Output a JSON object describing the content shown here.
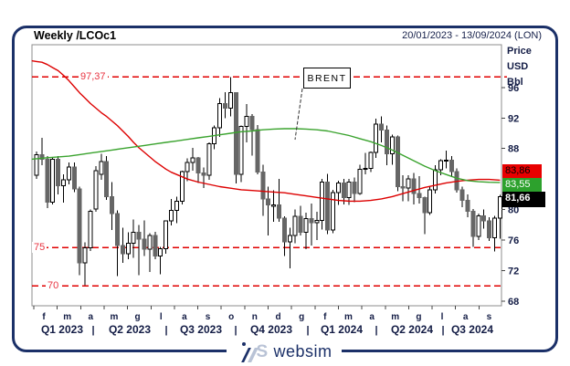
{
  "header": {
    "title": "Weekly /LCOc1",
    "date_range": "20/01/2023 - 13/09/2024 (LON)"
  },
  "y_axis": {
    "unit_lines": [
      "Price",
      "USD",
      "Bbl"
    ],
    "ticks": [
      96,
      92,
      88,
      80,
      76,
      72,
      68
    ]
  },
  "price_tags": {
    "red": {
      "value": "83,86",
      "bg": "#e80000"
    },
    "green": {
      "value": "83,55",
      "bg": "#2da12d"
    },
    "last": {
      "value": "81,66",
      "bg": "#000000"
    }
  },
  "annotation": {
    "label": "BRENT"
  },
  "x_axis": {
    "months": [
      "f",
      "m",
      "a",
      "m",
      "g",
      "l",
      "a",
      "s",
      "o",
      "n",
      "d",
      "g",
      "f",
      "m",
      "a",
      "m",
      "g",
      "l",
      "a",
      "s"
    ],
    "quarters": [
      "Q1 2023",
      "Q2 2023",
      "Q3 2023",
      "Q4 2023",
      "Q1 2024",
      "Q2 2024",
      "Q3 2024"
    ]
  },
  "footer": {
    "logo_mark_letter": "S",
    "logo_text": "websim"
  },
  "chart_data": {
    "type": "candlestick",
    "instrument": "/LCOc1",
    "period": "Weekly",
    "x_unit": "week",
    "x_start": "20/01/2023",
    "x_end": "13/09/2024",
    "ylim": [
      67.4,
      101.6
    ],
    "grid": false,
    "legend": "none",
    "levels": [
      {
        "value": 97.37,
        "label": "97,37"
      },
      {
        "value": 75,
        "label": "75"
      },
      {
        "value": 70,
        "label": "70"
      }
    ],
    "last_close": 81.66,
    "ma_red_last": 83.86,
    "ma_green_last": 83.55,
    "colors": {
      "up_fill": "#ffffff",
      "down_fill": "#666666",
      "wick": "#000000",
      "ma_red": "#dd0000",
      "ma_green": "#3aa32e",
      "level": "#e10000",
      "plot_border": "#8c8c8c",
      "axis_tick": "#444444"
    },
    "candles": [
      [
        84.5,
        87.6,
        84.0,
        87.2
      ],
      [
        87.2,
        89.4,
        85.8,
        86.6
      ],
      [
        86.6,
        87.0,
        80.2,
        81.0
      ],
      [
        81.0,
        86.9,
        80.7,
        86.6
      ],
      [
        86.6,
        87.0,
        82.0,
        83.1
      ],
      [
        83.1,
        84.6,
        80.9,
        83.9
      ],
      [
        83.9,
        86.2,
        83.3,
        85.6
      ],
      [
        85.6,
        86.2,
        82.3,
        82.7
      ],
      [
        82.7,
        83.0,
        71.4,
        73.0
      ],
      [
        73.0,
        75.7,
        70.1,
        75.0
      ],
      [
        75.0,
        80.0,
        74.6,
        79.8
      ],
      [
        80.1,
        85.7,
        79.7,
        85.1
      ],
      [
        84.6,
        87.3,
        83.9,
        86.3
      ],
      [
        86.3,
        87.0,
        81.3,
        81.7
      ],
      [
        81.7,
        83.6,
        77.3,
        79.5
      ],
      [
        79.5,
        79.9,
        71.3,
        75.3
      ],
      [
        75.3,
        77.6,
        73.0,
        74.2
      ],
      [
        74.2,
        77.0,
        73.5,
        75.6
      ],
      [
        75.6,
        78.7,
        73.7,
        77.0
      ],
      [
        77.0,
        78.0,
        71.4,
        76.1
      ],
      [
        76.1,
        78.6,
        73.9,
        74.8
      ],
      [
        74.8,
        76.9,
        71.8,
        76.6
      ],
      [
        76.6,
        77.1,
        73.5,
        73.9
      ],
      [
        73.9,
        75.1,
        71.5,
        74.9
      ],
      [
        74.9,
        78.6,
        74.2,
        78.5
      ],
      [
        78.5,
        81.4,
        77.9,
        79.9
      ],
      [
        79.9,
        81.7,
        78.2,
        81.1
      ],
      [
        81.1,
        85.1,
        80.7,
        85.0
      ],
      [
        85.0,
        86.7,
        83.7,
        86.2
      ],
      [
        86.2,
        88.1,
        85.1,
        86.8
      ],
      [
        86.8,
        86.9,
        83.5,
        84.8
      ],
      [
        84.8,
        85.5,
        82.8,
        84.5
      ],
      [
        84.5,
        88.8,
        83.9,
        88.6
      ],
      [
        88.6,
        91.0,
        87.9,
        90.7
      ],
      [
        90.7,
        94.6,
        89.5,
        93.9
      ],
      [
        93.9,
        95.4,
        92.0,
        93.3
      ],
      [
        93.3,
        97.37,
        92.2,
        95.3
      ],
      [
        95.3,
        95.4,
        83.4,
        84.6
      ],
      [
        84.6,
        91.0,
        83.6,
        90.9
      ],
      [
        90.9,
        93.8,
        88.8,
        92.2
      ],
      [
        92.2,
        92.5,
        87.1,
        90.5
      ],
      [
        90.5,
        91.1,
        84.6,
        84.9
      ],
      [
        84.9,
        85.9,
        79.2,
        81.4
      ],
      [
        81.4,
        83.0,
        76.6,
        80.6
      ],
      [
        80.6,
        82.5,
        78.4,
        80.6
      ],
      [
        80.6,
        84.0,
        78.4,
        78.9
      ],
      [
        78.9,
        79.1,
        73.9,
        75.8
      ],
      [
        75.8,
        77.6,
        72.3,
        76.6
      ],
      [
        76.6,
        80.0,
        75.6,
        79.1
      ],
      [
        79.1,
        80.5,
        76.6,
        77.0
      ],
      [
        77.0,
        79.6,
        74.8,
        78.8
      ],
      [
        78.8,
        80.8,
        75.3,
        78.3
      ],
      [
        78.3,
        79.7,
        76.0,
        78.6
      ],
      [
        78.6,
        84.0,
        77.4,
        83.6
      ],
      [
        83.6,
        84.7,
        76.8,
        77.3
      ],
      [
        77.3,
        82.6,
        76.9,
        82.2
      ],
      [
        82.2,
        83.8,
        80.6,
        83.5
      ],
      [
        83.5,
        84.0,
        80.7,
        81.6
      ],
      [
        81.6,
        84.0,
        80.6,
        83.6
      ],
      [
        83.6,
        84.2,
        81.0,
        82.1
      ],
      [
        82.1,
        85.9,
        81.9,
        85.3
      ],
      [
        85.3,
        87.4,
        84.6,
        85.4
      ],
      [
        85.4,
        87.6,
        84.9,
        87.5
      ],
      [
        87.5,
        91.9,
        86.8,
        91.2
      ],
      [
        91.2,
        92.2,
        88.8,
        90.4
      ],
      [
        90.4,
        91.0,
        85.8,
        87.3
      ],
      [
        87.3,
        89.8,
        85.9,
        89.5
      ],
      [
        89.5,
        89.7,
        82.4,
        83.0
      ],
      [
        83.0,
        84.5,
        81.1,
        82.8
      ],
      [
        82.8,
        84.5,
        81.1,
        84.0
      ],
      [
        84.0,
        84.8,
        80.7,
        82.1
      ],
      [
        82.1,
        84.4,
        80.8,
        81.6
      ],
      [
        81.6,
        81.7,
        76.8,
        79.6
      ],
      [
        79.6,
        83.0,
        79.3,
        82.6
      ],
      [
        82.6,
        85.8,
        82.1,
        85.2
      ],
      [
        85.2,
        86.6,
        84.5,
        86.4
      ],
      [
        86.4,
        87.7,
        85.4,
        86.5
      ],
      [
        86.5,
        87.0,
        84.3,
        85.0
      ],
      [
        85.0,
        85.4,
        82.2,
        82.6
      ],
      [
        82.6,
        83.0,
        80.3,
        81.2
      ],
      [
        81.2,
        82.0,
        79.0,
        79.8
      ],
      [
        79.8,
        80.1,
        75.1,
        76.5
      ],
      [
        76.5,
        79.5,
        76.0,
        79.2
      ],
      [
        79.2,
        80.0,
        77.5,
        78.5
      ],
      [
        78.5,
        79.0,
        75.9,
        76.3
      ],
      [
        76.3,
        79.2,
        74.5,
        78.9
      ],
      [
        78.9,
        81.9,
        76.2,
        81.66
      ]
    ],
    "ma_red": [
      [
        -0.9,
        99.5
      ],
      [
        0,
        99.4
      ],
      [
        1,
        99.3
      ],
      [
        2,
        99.0
      ],
      [
        3,
        98.6
      ],
      [
        4,
        98.2
      ],
      [
        5,
        97.6
      ],
      [
        6,
        96.9
      ],
      [
        7,
        96.1
      ],
      [
        8,
        95.3
      ],
      [
        9,
        94.6
      ],
      [
        10,
        93.9
      ],
      [
        11,
        93.3
      ],
      [
        12,
        92.7
      ],
      [
        13,
        92.2
      ],
      [
        14,
        91.6
      ],
      [
        15,
        91.0
      ],
      [
        16,
        90.3
      ],
      [
        17,
        89.6
      ],
      [
        18,
        88.8
      ],
      [
        19,
        88.1
      ],
      [
        20,
        87.5
      ],
      [
        21,
        86.9
      ],
      [
        22,
        86.3
      ],
      [
        23,
        85.8
      ],
      [
        24,
        85.3
      ],
      [
        25,
        84.9
      ],
      [
        26,
        84.6
      ],
      [
        27,
        84.3
      ],
      [
        28,
        84.0
      ],
      [
        30,
        83.6
      ],
      [
        32,
        83.3
      ],
      [
        34,
        83.0
      ],
      [
        36,
        82.8
      ],
      [
        38,
        82.6
      ],
      [
        40,
        82.5
      ],
      [
        42,
        82.4
      ],
      [
        44,
        82.3
      ],
      [
        46,
        82.2
      ],
      [
        48,
        82.0
      ],
      [
        50,
        81.8
      ],
      [
        52,
        81.6
      ],
      [
        54,
        81.4
      ],
      [
        56,
        81.2
      ],
      [
        58,
        81.1
      ],
      [
        60,
        81.1
      ],
      [
        62,
        81.2
      ],
      [
        64,
        81.4
      ],
      [
        66,
        81.7
      ],
      [
        68,
        82.1
      ],
      [
        70,
        82.5
      ],
      [
        72,
        82.9
      ],
      [
        74,
        83.2
      ],
      [
        76,
        83.5
      ],
      [
        78,
        83.7
      ],
      [
        80,
        83.85
      ],
      [
        82,
        83.95
      ],
      [
        84,
        83.95
      ],
      [
        86,
        83.86
      ]
    ],
    "ma_green": [
      [
        -0.9,
        86.6
      ],
      [
        2,
        86.8
      ],
      [
        4,
        86.9
      ],
      [
        6,
        87.0
      ],
      [
        8,
        87.2
      ],
      [
        10,
        87.4
      ],
      [
        12,
        87.6
      ],
      [
        14,
        87.8
      ],
      [
        16,
        88.0
      ],
      [
        18,
        88.2
      ],
      [
        20,
        88.4
      ],
      [
        22,
        88.6
      ],
      [
        24,
        88.8
      ],
      [
        26,
        89.0
      ],
      [
        28,
        89.2
      ],
      [
        30,
        89.4
      ],
      [
        32,
        89.6
      ],
      [
        34,
        89.8
      ],
      [
        36,
        90.0
      ],
      [
        38,
        90.2
      ],
      [
        40,
        90.3
      ],
      [
        42,
        90.45
      ],
      [
        44,
        90.55
      ],
      [
        46,
        90.6
      ],
      [
        48,
        90.6
      ],
      [
        50,
        90.55
      ],
      [
        52,
        90.45
      ],
      [
        54,
        90.3
      ],
      [
        56,
        90.0
      ],
      [
        58,
        89.7
      ],
      [
        60,
        89.3
      ],
      [
        62,
        88.9
      ],
      [
        64,
        88.4
      ],
      [
        66,
        87.8
      ],
      [
        68,
        87.1
      ],
      [
        70,
        86.4
      ],
      [
        72,
        85.7
      ],
      [
        74,
        85.1
      ],
      [
        76,
        84.6
      ],
      [
        78,
        84.1
      ],
      [
        80,
        83.8
      ],
      [
        82,
        83.65
      ],
      [
        84,
        83.58
      ],
      [
        86,
        83.55
      ]
    ]
  }
}
